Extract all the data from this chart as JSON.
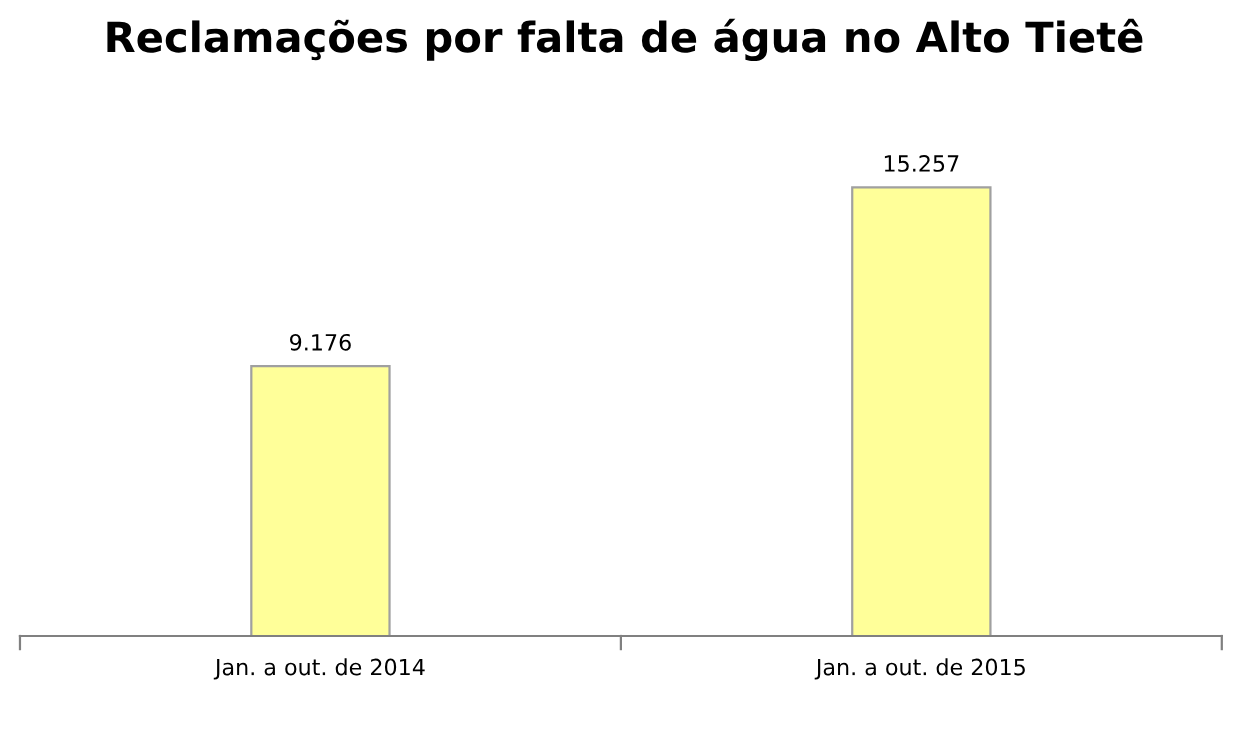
{
  "chart_data": {
    "type": "bar",
    "title": "Reclamações por falta de água no Alto Tietê",
    "categories": [
      "Jan. a out. de 2014",
      "Jan. a out. de 2015"
    ],
    "values": [
      9176,
      15257
    ],
    "value_labels": [
      "9.176",
      "15.257"
    ],
    "color": "#ffff99",
    "grid": false,
    "legend": false
  }
}
